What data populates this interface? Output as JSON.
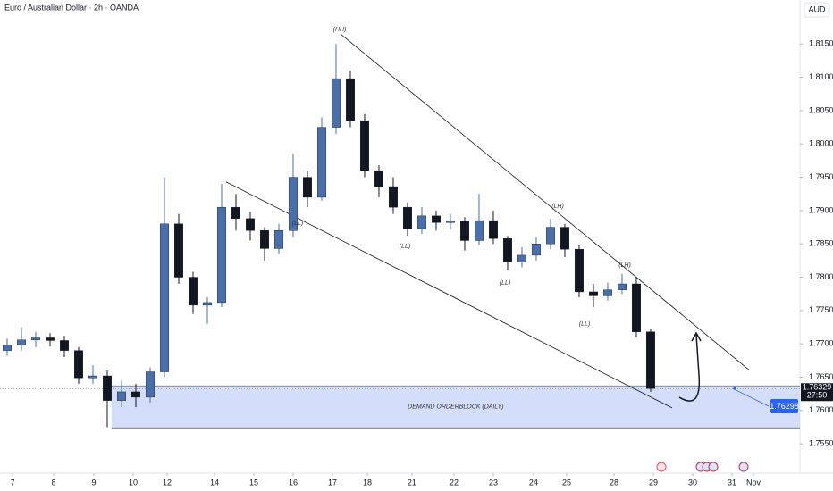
{
  "chart_data": {
    "type": "candlestick",
    "title": "Euro / Australian Dollar · 2h · OANDA",
    "currency": "AUD",
    "up_color": "#4a6fa8",
    "down_color": "#131722",
    "x": [
      0,
      1,
      2,
      3,
      4,
      5,
      6,
      7,
      8,
      9,
      10,
      11,
      12,
      13,
      14,
      15,
      16,
      17,
      18,
      19,
      20,
      21,
      22,
      23,
      24,
      25,
      26,
      27,
      28,
      29,
      30,
      31,
      32,
      33,
      34,
      35,
      36,
      37,
      38,
      39,
      40,
      41,
      42,
      43,
      44,
      45
    ],
    "open": [
      1.769,
      1.7698,
      1.7706,
      1.7709,
      1.7705,
      1.769,
      1.7649,
      1.7652,
      1.7615,
      1.7628,
      1.762,
      1.7658,
      1.788,
      1.78,
      1.7758,
      1.7762,
      1.7905,
      1.7888,
      1.787,
      1.7843,
      1.787,
      1.795,
      1.792,
      1.8025,
      1.8098,
      1.8035,
      1.796,
      1.7936,
      1.7905,
      1.7873,
      1.7892,
      1.7882,
      1.7884,
      1.7855,
      1.7885,
      1.7858,
      1.7823,
      1.7833,
      1.785,
      1.7875,
      1.7842,
      1.7778,
      1.7772,
      1.7781,
      1.779,
      1.7718
    ],
    "high": [
      1.7708,
      1.7725,
      1.7718,
      1.7716,
      1.7712,
      1.7695,
      1.7668,
      1.766,
      1.7645,
      1.764,
      1.7665,
      1.795,
      1.7895,
      1.7808,
      1.777,
      1.794,
      1.7925,
      1.7898,
      1.7875,
      1.788,
      1.7985,
      1.796,
      1.804,
      1.815,
      1.811,
      1.8045,
      1.7968,
      1.795,
      1.7912,
      1.7905,
      1.79,
      1.7895,
      1.789,
      1.7925,
      1.79,
      1.7862,
      1.7845,
      1.786,
      1.7888,
      1.788,
      1.7848,
      1.779,
      1.7792,
      1.7805,
      1.78,
      1.7722
    ],
    "low": [
      1.7682,
      1.769,
      1.7695,
      1.7696,
      1.768,
      1.764,
      1.764,
      1.7575,
      1.7605,
      1.7605,
      1.7612,
      1.765,
      1.779,
      1.7745,
      1.773,
      1.7755,
      1.787,
      1.7855,
      1.7825,
      1.7835,
      1.786,
      1.7905,
      1.7915,
      1.8015,
      1.8025,
      1.795,
      1.792,
      1.7895,
      1.7862,
      1.7865,
      1.787,
      1.7872,
      1.784,
      1.7848,
      1.785,
      1.781,
      1.7815,
      1.7825,
      1.7842,
      1.783,
      1.777,
      1.7755,
      1.7765,
      1.7775,
      1.771,
      1.7628
    ],
    "close": [
      1.7698,
      1.7706,
      1.7709,
      1.7705,
      1.769,
      1.7649,
      1.7652,
      1.7615,
      1.7628,
      1.762,
      1.7658,
      1.788,
      1.78,
      1.7758,
      1.7762,
      1.7905,
      1.7888,
      1.787,
      1.7843,
      1.787,
      1.795,
      1.792,
      1.8025,
      1.8098,
      1.8035,
      1.796,
      1.7936,
      1.7905,
      1.7873,
      1.7892,
      1.7882,
      1.7884,
      1.7855,
      1.7885,
      1.7858,
      1.7823,
      1.7833,
      1.785,
      1.7875,
      1.7842,
      1.7778,
      1.7772,
      1.7781,
      1.779,
      1.7718,
      1.7633
    ],
    "xlim": [
      -0.5,
      55.44
    ],
    "ylim": [
      1.7506,
      1.8216
    ],
    "xticks": [
      {
        "value": 0.38,
        "label": "7"
      },
      {
        "value": 3.25,
        "label": "8"
      },
      {
        "value": 6.06,
        "label": "9"
      },
      {
        "value": 8.81,
        "label": "10"
      },
      {
        "value": 11.19,
        "label": "12"
      },
      {
        "value": 14.5,
        "label": "14"
      },
      {
        "value": 17.25,
        "label": "15"
      },
      {
        "value": 20,
        "label": "16"
      },
      {
        "value": 22.75,
        "label": "17"
      },
      {
        "value": 25.19,
        "label": "18"
      },
      {
        "value": 28.31,
        "label": "21"
      },
      {
        "value": 31.25,
        "label": "22"
      },
      {
        "value": 34,
        "label": "23"
      },
      {
        "value": 36.81,
        "label": "24"
      },
      {
        "value": 39.13,
        "label": "25"
      },
      {
        "value": 42.44,
        "label": "28"
      },
      {
        "value": 45.19,
        "label": "29"
      },
      {
        "value": 47.94,
        "label": "30"
      },
      {
        "value": 50.69,
        "label": "31"
      },
      {
        "value": 52.19,
        "label": "Nov"
      }
    ],
    "yticks": [
      {
        "value": 1.755,
        "label": "1.75500"
      },
      {
        "value": 1.76,
        "label": "1.76000"
      },
      {
        "value": 1.765,
        "label": "1.76500"
      },
      {
        "value": 1.77,
        "label": "1.77000"
      },
      {
        "value": 1.775,
        "label": "1.77500"
      },
      {
        "value": 1.78,
        "label": "1.78000"
      },
      {
        "value": 1.785,
        "label": "1.78500"
      },
      {
        "value": 1.79,
        "label": "1.79000"
      },
      {
        "value": 1.795,
        "label": "1.79500"
      },
      {
        "value": 1.8,
        "label": "1.80000"
      },
      {
        "value": 1.805,
        "label": "1.80500"
      },
      {
        "value": 1.81,
        "label": "1.81000"
      },
      {
        "value": 1.815,
        "label": "1.81500"
      }
    ],
    "zone": {
      "label": "DEMAND ORDERBLOCK (DAILY)",
      "x_start": 7.3,
      "top": 1.7637,
      "bottom": 1.7574,
      "color": "#c9d5f7"
    },
    "trendlines": [
      {
        "x": [
          23.375,
          51.875
        ],
        "y": [
          1.8164,
          1.7661
        ]
      },
      {
        "x": [
          15.31,
          46.5
        ],
        "y": [
          1.7943,
          1.7604
        ]
      }
    ],
    "annotations": [
      "(HH)",
      "(LH)",
      "(LH)",
      "(LL)",
      "(LL)",
      "(LL)",
      "(LL)"
    ],
    "last_price": {
      "value": 1.76329,
      "label": "1.76329",
      "countdown": "27:50"
    },
    "marker_price": {
      "value": 1.76298,
      "label": "1.76298"
    }
  }
}
